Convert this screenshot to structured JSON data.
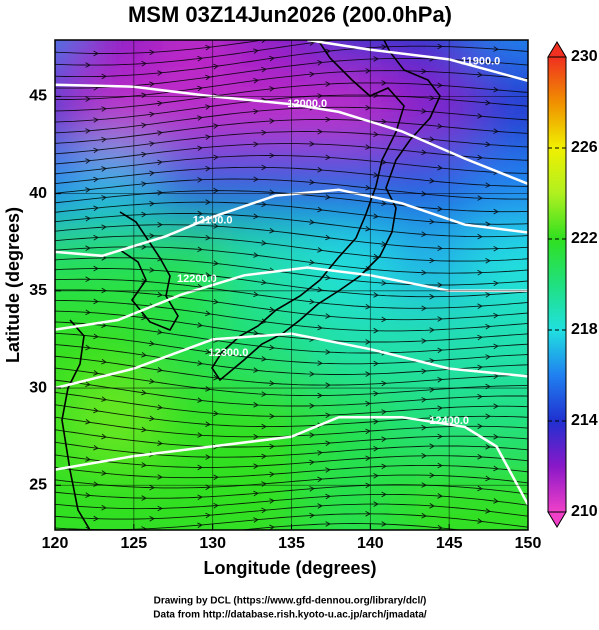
{
  "chart_data": {
    "type": "field",
    "title": "MSM 03Z14Jun2026 (200.0hPa)",
    "x_label": "Longitude (degrees)",
    "y_label": "Latitude  (degrees)",
    "footer": [
      "Drawing by DCL (https://www.gfd-dennou.org/library/dcl/)",
      "Data from http://database.rish.kyoto-u.ac.jp/arch/jmadata/"
    ],
    "xlim": [
      120,
      150
    ],
    "ylim": [
      22.7,
      47.9
    ],
    "xticks": [
      120,
      125,
      130,
      135,
      140,
      145,
      150
    ],
    "yticks": [
      25,
      30,
      35,
      40,
      45
    ],
    "grid": true,
    "field": {
      "lons": [
        120,
        125,
        130,
        135,
        140,
        145,
        150
      ],
      "lats": [
        47.5,
        43.5,
        39.5,
        35.5,
        31.5,
        27.5,
        23.5
      ],
      "values": [
        [
          216,
          212,
          211,
          212,
          214,
          214,
          216
        ],
        [
          213,
          211,
          211,
          211,
          211,
          212,
          214
        ],
        [
          216,
          217,
          215,
          215,
          215,
          215,
          216
        ],
        [
          221,
          221,
          221,
          219,
          218,
          217,
          218
        ],
        [
          222,
          222,
          221,
          220,
          219,
          219,
          219
        ],
        [
          222,
          223,
          222,
          222,
          221,
          220,
          220
        ],
        [
          222,
          222,
          222,
          222,
          221,
          222,
          222
        ]
      ]
    },
    "colormap": [
      {
        "value": 210,
        "color": "#f040c8"
      },
      {
        "value": 212,
        "color": "#8a18c8"
      },
      {
        "value": 214,
        "color": "#2030d0"
      },
      {
        "value": 216,
        "color": "#2080f0"
      },
      {
        "value": 218,
        "color": "#20e0e0"
      },
      {
        "value": 220,
        "color": "#20e080"
      },
      {
        "value": 222,
        "color": "#30e020"
      },
      {
        "value": 224,
        "color": "#b0f020"
      },
      {
        "value": 226,
        "color": "#f0f000"
      },
      {
        "value": 228,
        "color": "#f09000"
      },
      {
        "value": 230,
        "color": "#f03020"
      }
    ],
    "colorbar_lim": [
      210,
      230
    ],
    "colorbar_ticks": [
      210,
      214,
      218,
      222,
      226,
      230
    ],
    "contours": [
      {
        "value": 11900,
        "label": "11900.0",
        "label_at": [
          147,
          46.8
        ],
        "lon": [
          136,
          140,
          145,
          150
        ],
        "lat": [
          47.9,
          47.4,
          46.9,
          45.8
        ]
      },
      {
        "value": 12000,
        "label": "12000.0",
        "label_at": [
          136,
          44.6
        ],
        "lon": [
          120,
          125,
          130,
          135,
          138,
          142,
          146,
          150
        ],
        "lat": [
          45.6,
          45.5,
          45,
          44.6,
          44.2,
          43.2,
          41.8,
          40.5
        ]
      },
      {
        "value": 12100,
        "label": "12100.0",
        "label_at": [
          130,
          38.6
        ],
        "lon": [
          120,
          123,
          127,
          130,
          134,
          138,
          142,
          146,
          150
        ],
        "lat": [
          37,
          36.8,
          37.8,
          38.8,
          39.9,
          40.2,
          39.5,
          38.4,
          38
        ]
      },
      {
        "value": 12200,
        "label": "12200.0",
        "label_at": [
          129,
          35.6
        ],
        "lon": [
          120,
          124,
          128,
          132,
          136,
          140,
          145,
          150
        ],
        "lat": [
          33,
          33.5,
          34.8,
          35.8,
          36.2,
          35.8,
          35,
          35
        ]
      },
      {
        "value": 12300,
        "label": "12300.0",
        "label_at": [
          131,
          31.8
        ],
        "lon": [
          120,
          125,
          130,
          135,
          140,
          145,
          150
        ],
        "lat": [
          30,
          31,
          32.5,
          32.8,
          32,
          31,
          30.6
        ]
      },
      {
        "value": 12400,
        "label": "12400.0",
        "label_at": [
          145,
          28.3
        ],
        "lon": [
          120,
          125,
          130,
          135,
          138,
          142,
          146,
          148,
          150
        ],
        "lat": [
          25.8,
          26.5,
          27,
          27.5,
          28.5,
          28.5,
          28,
          27,
          24
        ]
      }
    ]
  }
}
